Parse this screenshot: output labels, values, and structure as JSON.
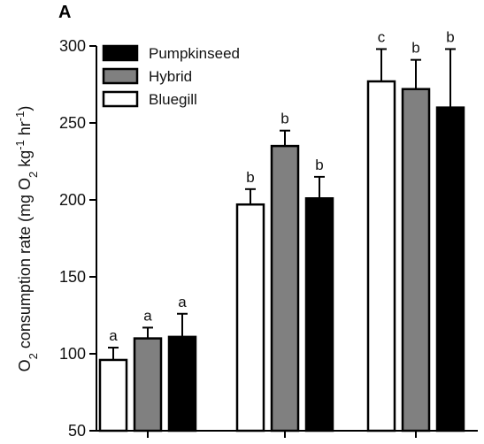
{
  "panel_label": "A",
  "chart_data": {
    "type": "bar",
    "title": "",
    "xlabel": "",
    "ylabel": {
      "prefix": "O",
      "sub1": "2",
      "mid": " consumption rate (mg O",
      "sub2": "2",
      "mid2": " kg",
      "sup1": "-1",
      "mid3": " hr",
      "sup2": "-1",
      "suffix": ")"
    },
    "ylim": [
      50,
      300
    ],
    "yticks": [
      50,
      100,
      150,
      200,
      250,
      300
    ],
    "grid": false,
    "legend_position": "top-left",
    "groups": [
      "",
      "",
      ""
    ],
    "series": [
      {
        "name": "Bluegill",
        "fill": "#ffffff",
        "values": [
          96,
          197,
          277
        ],
        "errors": [
          8,
          10,
          21
        ],
        "labels": [
          "a",
          "b",
          "c"
        ]
      },
      {
        "name": "Hybrid",
        "fill": "#808080",
        "values": [
          110,
          235,
          272
        ],
        "errors": [
          7,
          10,
          19
        ],
        "labels": [
          "a",
          "b",
          "b"
        ]
      },
      {
        "name": "Pumpkinseed",
        "fill": "#000000",
        "values": [
          111,
          201,
          260
        ],
        "errors": [
          15,
          14,
          38
        ],
        "labels": [
          "a",
          "b",
          "b"
        ]
      }
    ],
    "legend_order": [
      "Pumpkinseed",
      "Hybrid",
      "Bluegill"
    ]
  }
}
